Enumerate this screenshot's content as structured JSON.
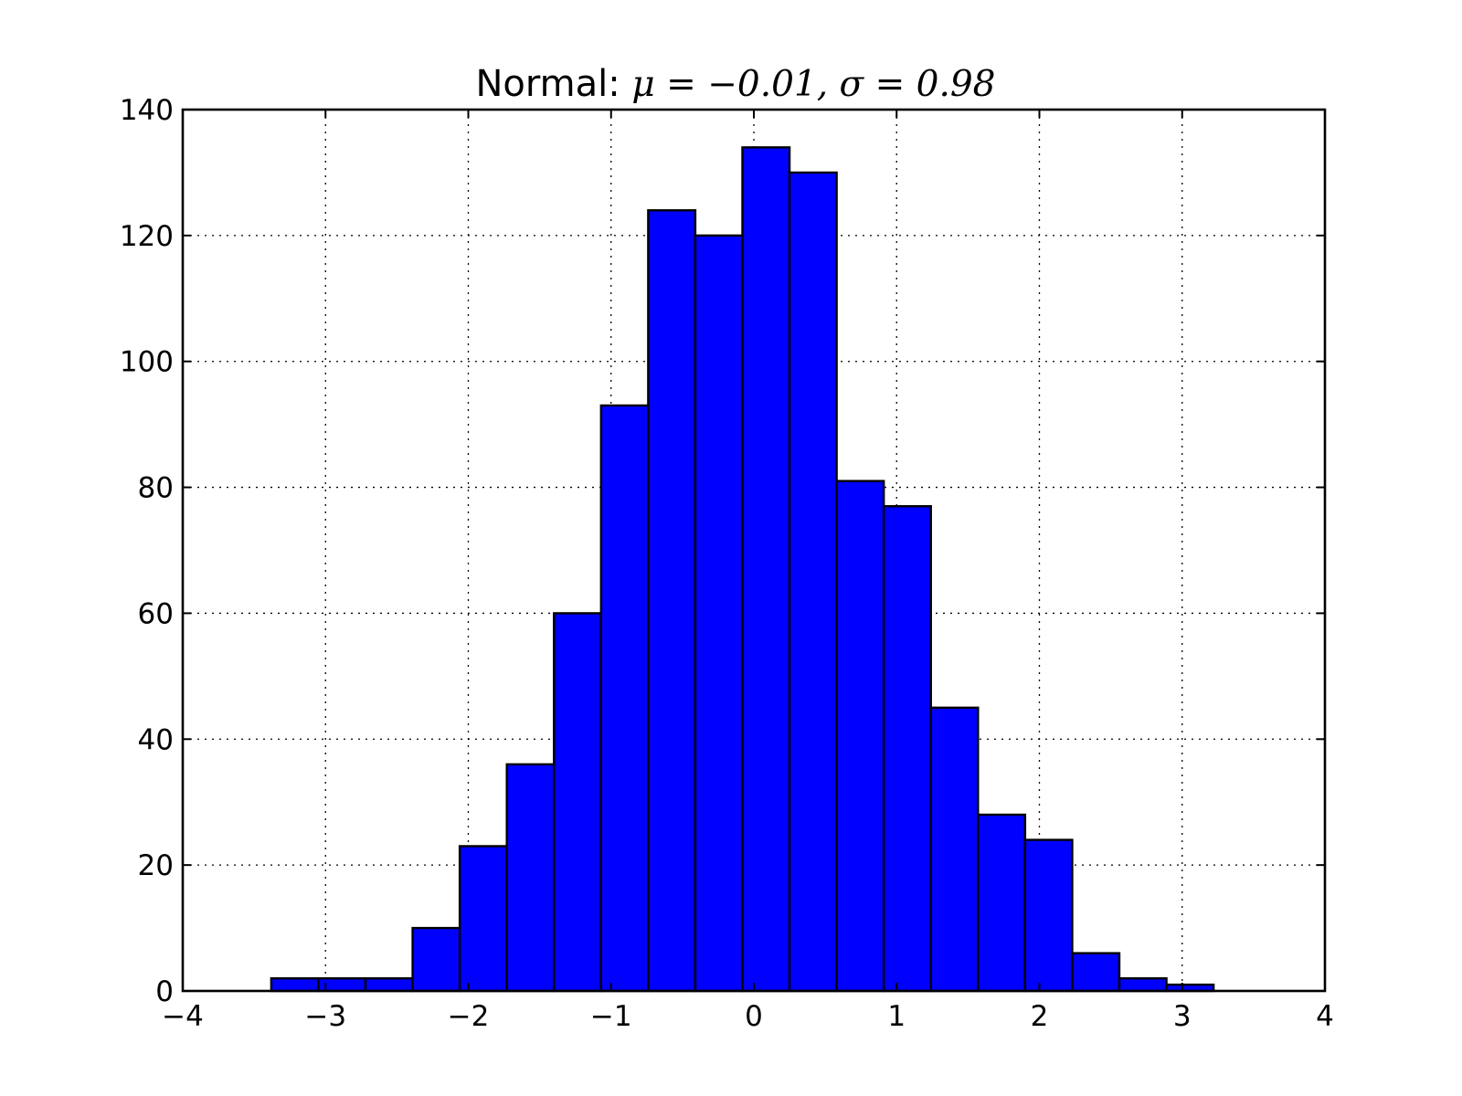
{
  "chart_data": {
    "type": "bar",
    "title_prefix": "Normal: ",
    "title_math": "μ = −0.01, σ = 0.98",
    "xlabel": "",
    "ylabel": "",
    "xlim": [
      -4,
      4
    ],
    "ylim": [
      0,
      140
    ],
    "grid": true,
    "bar_color": "#0000ff",
    "bin_edges": [
      -3.38,
      -3.05,
      -2.72,
      -2.39,
      -2.06,
      -1.73,
      -1.4,
      -1.07,
      -0.74,
      -0.41,
      -0.08,
      0.25,
      0.58,
      0.91,
      1.24,
      1.57,
      1.9,
      2.23,
      2.56,
      2.89,
      3.22
    ],
    "values": [
      2,
      2,
      2,
      10,
      23,
      36,
      60,
      93,
      124,
      120,
      134,
      130,
      81,
      77,
      45,
      28,
      24,
      6,
      2,
      1
    ],
    "xticks": [
      -4,
      -3,
      -2,
      -1,
      0,
      1,
      2,
      3,
      4
    ],
    "xtick_labels": [
      "−4",
      "−3",
      "−2",
      "−1",
      "0",
      "1",
      "2",
      "3",
      "4"
    ],
    "yticks": [
      0,
      20,
      40,
      60,
      80,
      100,
      120,
      140
    ],
    "ytick_labels": [
      "0",
      "20",
      "40",
      "60",
      "80",
      "100",
      "120",
      "140"
    ]
  }
}
